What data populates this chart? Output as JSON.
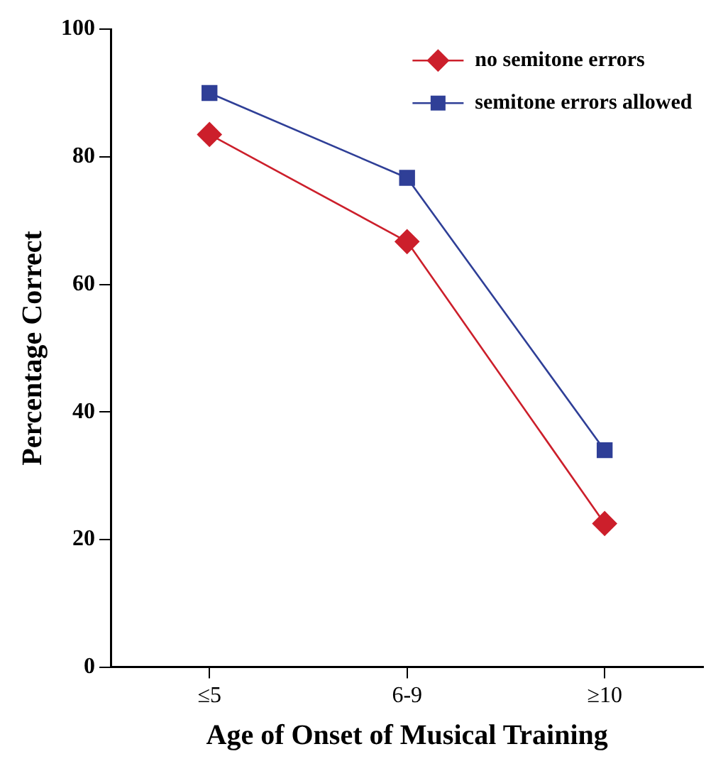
{
  "chart_data": {
    "type": "line",
    "xlabel": "Age of Onset of Musical Training",
    "ylabel": "Percentage Correct",
    "categories": [
      "≤5",
      "6-9",
      "≥10"
    ],
    "series": [
      {
        "name": "no semitone errors",
        "color": "#cc1f2b",
        "marker": "diamond",
        "values": [
          83.5,
          66.7,
          22.5
        ]
      },
      {
        "name": "semitone errors allowed",
        "color": "#2f3f97",
        "marker": "square",
        "values": [
          90,
          76.7,
          34
        ]
      }
    ],
    "ylim": [
      0,
      100
    ],
    "yticks": [
      0,
      20,
      40,
      60,
      80,
      100
    ],
    "grid": false,
    "legend": "top right",
    "line_style": "solid"
  }
}
